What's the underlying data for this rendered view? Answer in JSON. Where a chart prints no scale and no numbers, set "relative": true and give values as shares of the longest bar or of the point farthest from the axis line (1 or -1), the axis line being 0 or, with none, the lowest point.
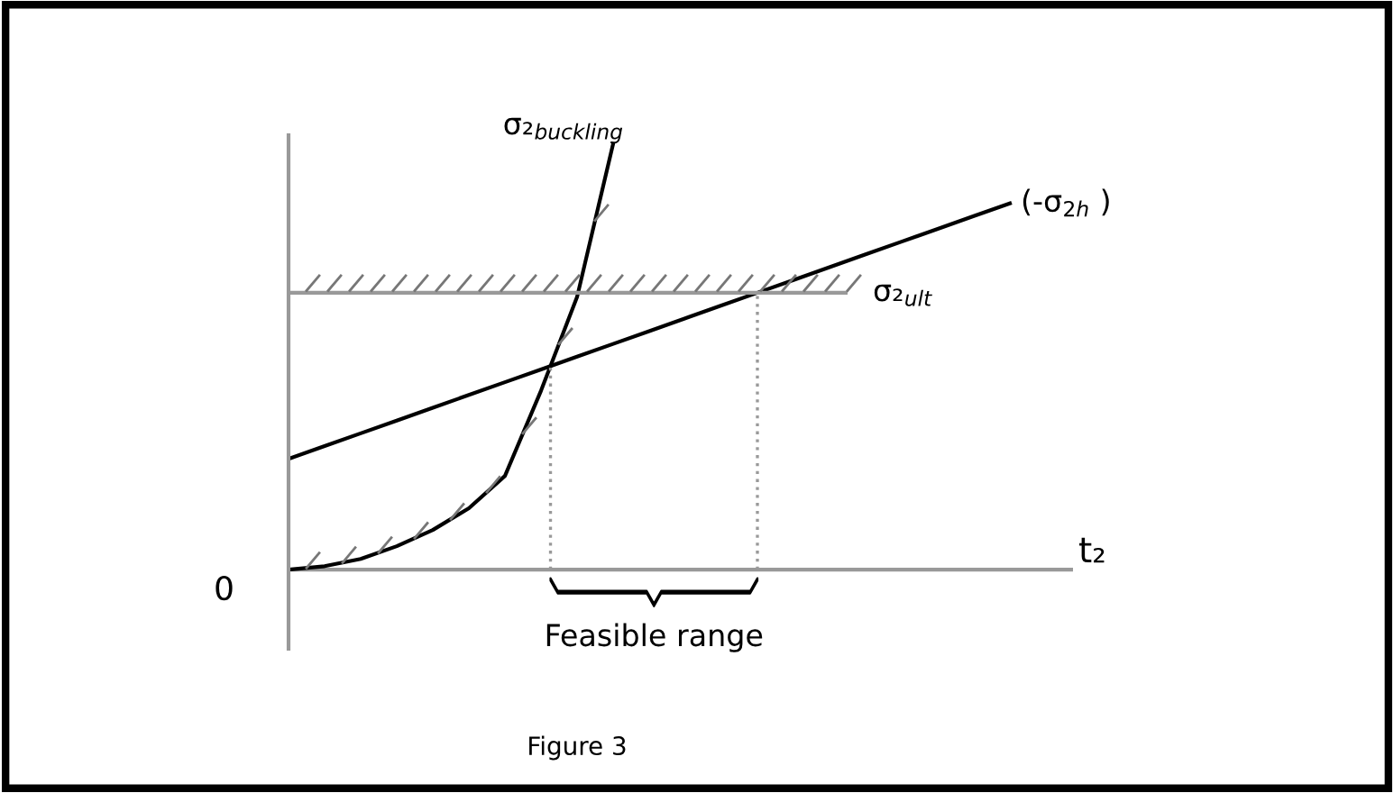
{
  "chart_data": {
    "type": "line",
    "relative": true,
    "title": null,
    "xlabel": "t₂",
    "categories": [
      null,
      null,
      null,
      null,
      null,
      null,
      null,
      null,
      null,
      null,
      null,
      null,
      null,
      null,
      null,
      null,
      null,
      null,
      null,
      null,
      null
    ],
    "series": [
      {
        "name": "σ₂$_{buckling}$",
        "color": "#000000",
        "values": [
          0,
          0.008,
          0.025,
          0.055,
          0.093,
          0.144,
          0.22,
          0.42,
          0.64,
          1.0,
          null,
          null,
          null,
          null,
          null,
          null,
          null,
          null,
          null,
          null,
          null
        ]
      },
      {
        "name": "(-σ$_{2h}$ )",
        "color": "#000000",
        "values": [
          0.26,
          0.29,
          0.32,
          0.35,
          0.38,
          0.41,
          0.44,
          0.47,
          0.5,
          0.53,
          0.56,
          0.59,
          0.62,
          0.65,
          0.68,
          0.71,
          0.74,
          0.77,
          0.8,
          0.83,
          0.86
        ]
      }
    ],
    "ref_lines": [
      {
        "axis": "y",
        "value": 0.65,
        "label": "σ₂$_{ult}$",
        "color": "#999999",
        "line_style": "solid"
      }
    ],
    "annotations": [
      "0",
      "Feasible range",
      "Figure 3"
    ],
    "grid": false,
    "legend": false,
    "marker": "none",
    "line_style": "solid"
  }
}
